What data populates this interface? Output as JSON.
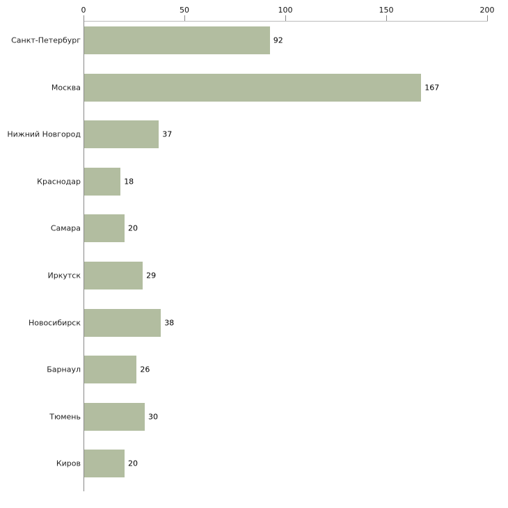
{
  "chart_data": {
    "type": "bar",
    "orientation": "horizontal",
    "title": "",
    "xlabel": "",
    "ylabel": "",
    "categories": [
      "Санкт-Петербург",
      "Москва",
      "Нижний Новгород",
      "Краснодар",
      "Самара",
      "Иркутск",
      "Новосибирск",
      "Барнаул",
      "Тюмень",
      "Киров"
    ],
    "values": [
      92,
      167,
      37,
      18,
      20,
      29,
      38,
      26,
      30,
      20
    ],
    "x_ticks": [
      0,
      50,
      100,
      150,
      200
    ],
    "xlim": [
      0,
      200
    ],
    "grid": false,
    "legend": false,
    "value_labels": true,
    "bar_color": "#b2bda0",
    "axis_color": "#888888",
    "text_color": "#222222"
  }
}
